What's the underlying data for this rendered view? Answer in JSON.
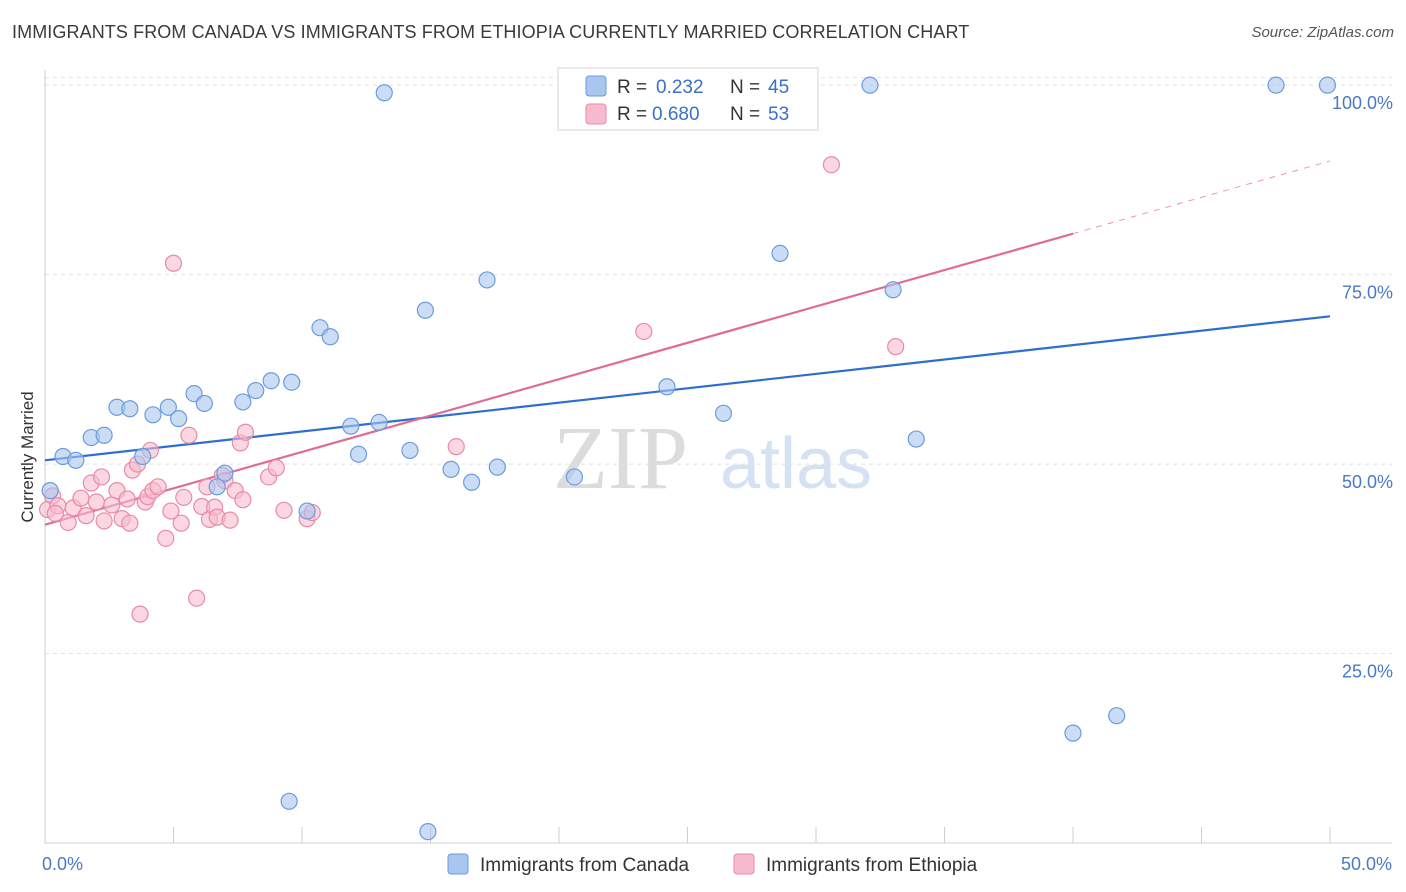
{
  "title": "IMMIGRANTS FROM CANADA VS IMMIGRANTS FROM ETHIOPIA CURRENTLY MARRIED CORRELATION CHART",
  "source": "Source: ZipAtlas.com",
  "watermark": {
    "zip": "ZIP",
    "atlas": "atlas"
  },
  "legend": {
    "r_label": "R =",
    "n_label": "N =",
    "items": [
      {
        "name": "Immigrants from Canada",
        "r": "0.232",
        "n": "45",
        "fill": "#a9c6ef",
        "stroke": "#6b9be0"
      },
      {
        "name": "Immigrants from Ethiopia",
        "r": "0.680",
        "n": "53",
        "fill": "#f6bccd",
        "stroke": "#e98aa8"
      }
    ]
  },
  "chart_data": {
    "type": "scatter",
    "title": "IMMIGRANTS FROM CANADA VS IMMIGRANTS FROM ETHIOPIA CURRENTLY MARRIED CORRELATION CHART",
    "xlabel": "",
    "ylabel": "Currently Married",
    "xlim": [
      0,
      50
    ],
    "ylim": [
      0,
      102
    ],
    "x_tick_labels": [
      "0.0%",
      "50.0%"
    ],
    "y_ticks": [
      25,
      50,
      75,
      100
    ],
    "y_tick_labels": [
      "25.0%",
      "50.0%",
      "75.0%",
      "100.0%"
    ],
    "grid": true,
    "legend_position": "top-center",
    "series": [
      {
        "name": "Immigrants from Canada",
        "color": "#6b9be0",
        "fill": "#a9c6ef",
        "trend_color": "#2f6ecf",
        "trend": {
          "x0": 0,
          "y0": 50.5,
          "x1": 50,
          "y1": 69.5,
          "solid_to": 50
        },
        "points": [
          [
            0.2,
            46.5
          ],
          [
            0.7,
            51.0
          ],
          [
            1.2,
            50.5
          ],
          [
            1.8,
            53.5
          ],
          [
            2.3,
            53.8
          ],
          [
            2.8,
            57.5
          ],
          [
            3.3,
            57.3
          ],
          [
            3.8,
            51.0
          ],
          [
            4.2,
            56.5
          ],
          [
            4.8,
            57.5
          ],
          [
            5.2,
            56.0
          ],
          [
            5.8,
            59.3
          ],
          [
            6.2,
            58.0
          ],
          [
            6.7,
            47.0
          ],
          [
            7.0,
            48.8
          ],
          [
            7.7,
            58.2
          ],
          [
            8.2,
            59.7
          ],
          [
            8.8,
            61.0
          ],
          [
            9.6,
            60.8
          ],
          [
            9.5,
            5.5
          ],
          [
            10.2,
            43.8
          ],
          [
            10.7,
            68.0
          ],
          [
            11.1,
            66.8
          ],
          [
            11.9,
            55.0
          ],
          [
            12.2,
            51.3
          ],
          [
            13.0,
            55.5
          ],
          [
            13.2,
            99.0
          ],
          [
            14.2,
            51.8
          ],
          [
            14.8,
            70.3
          ],
          [
            14.9,
            1.5
          ],
          [
            15.8,
            49.3
          ],
          [
            16.6,
            47.6
          ],
          [
            17.2,
            74.3
          ],
          [
            17.6,
            49.6
          ],
          [
            20.6,
            48.3
          ],
          [
            24.2,
            60.2
          ],
          [
            26.4,
            56.7
          ],
          [
            28.6,
            77.8
          ],
          [
            32.1,
            100.0
          ],
          [
            33.0,
            73.0
          ],
          [
            33.9,
            53.3
          ],
          [
            40.0,
            14.5
          ],
          [
            41.7,
            16.8
          ],
          [
            47.9,
            100.0
          ],
          [
            49.9,
            100.0
          ]
        ]
      },
      {
        "name": "Immigrants from Ethiopia",
        "color": "#e98aa8",
        "fill": "#f6bccd",
        "trend_color": "#e06b96",
        "trend": {
          "x0": 0,
          "y0": 42.0,
          "x1": 50,
          "y1": 90.0,
          "solid_to": 40
        },
        "points": [
          [
            0.1,
            44.0
          ],
          [
            0.3,
            45.8
          ],
          [
            0.5,
            44.5
          ],
          [
            0.9,
            42.3
          ],
          [
            1.1,
            44.2
          ],
          [
            1.4,
            45.5
          ],
          [
            1.6,
            43.2
          ],
          [
            1.8,
            47.5
          ],
          [
            2.0,
            45.0
          ],
          [
            2.2,
            48.3
          ],
          [
            2.3,
            42.5
          ],
          [
            2.6,
            44.6
          ],
          [
            2.8,
            46.5
          ],
          [
            3.0,
            42.8
          ],
          [
            3.2,
            45.4
          ],
          [
            3.3,
            42.2
          ],
          [
            3.4,
            49.2
          ],
          [
            3.6,
            50.0
          ],
          [
            3.7,
            30.2
          ],
          [
            3.9,
            45.0
          ],
          [
            4.1,
            51.8
          ],
          [
            4.0,
            45.7
          ],
          [
            4.2,
            46.5
          ],
          [
            4.4,
            47.0
          ],
          [
            4.7,
            40.2
          ],
          [
            4.9,
            43.8
          ],
          [
            5.0,
            76.5
          ],
          [
            5.3,
            42.2
          ],
          [
            5.4,
            45.6
          ],
          [
            5.6,
            53.8
          ],
          [
            5.9,
            32.3
          ],
          [
            6.1,
            44.4
          ],
          [
            6.3,
            47.0
          ],
          [
            6.4,
            42.7
          ],
          [
            6.6,
            44.3
          ],
          [
            6.7,
            43.0
          ],
          [
            6.9,
            48.5
          ],
          [
            7.0,
            47.8
          ],
          [
            7.2,
            42.6
          ],
          [
            7.4,
            46.5
          ],
          [
            7.6,
            52.8
          ],
          [
            7.7,
            45.3
          ],
          [
            7.8,
            54.2
          ],
          [
            8.7,
            48.3
          ],
          [
            9.0,
            49.5
          ],
          [
            9.3,
            43.9
          ],
          [
            10.2,
            42.8
          ],
          [
            10.4,
            43.6
          ],
          [
            16.0,
            52.3
          ],
          [
            23.3,
            67.5
          ],
          [
            30.6,
            89.5
          ],
          [
            33.1,
            65.5
          ],
          [
            0.4,
            43.5
          ]
        ]
      }
    ]
  }
}
